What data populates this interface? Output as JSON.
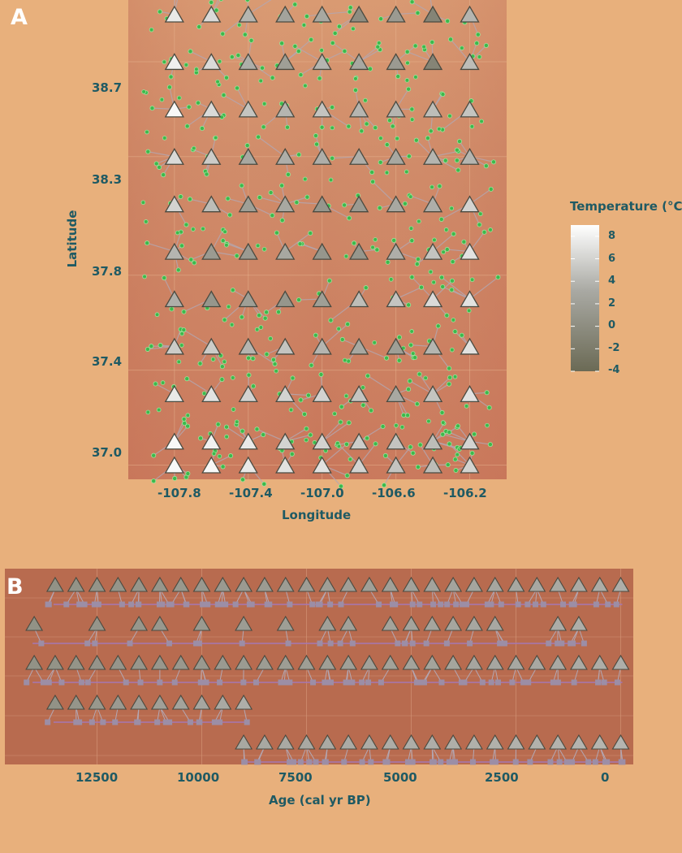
{
  "panels": {
    "a_letter": "A",
    "b_letter": "B"
  },
  "chart_data": [
    {
      "id": "A",
      "type": "scatter",
      "xlabel": "Longitude",
      "ylabel": "Latitude",
      "xlim": [
        -108.05,
        -106.0
      ],
      "ylim": [
        36.94,
        38.96
      ],
      "x_ticks": [
        -107.8,
        -107.4,
        -107.0,
        -106.6,
        -106.2
      ],
      "x_tick_labels": [
        "-107.8",
        "-107.4",
        "-107.0",
        "-106.6",
        "-106.2"
      ],
      "y_ticks": [
        37.0,
        37.4,
        37.8,
        38.3,
        38.7
      ],
      "y_tick_labels": [
        "37.0",
        "37.4",
        "37.8",
        "38.3",
        "38.7"
      ],
      "grid_lon": [
        -107.8,
        -107.6,
        -107.4,
        -107.2,
        -107.0,
        -106.8,
        -106.6,
        -106.4,
        -106.2
      ],
      "grid_lat": [
        38.9,
        38.7,
        38.5,
        38.3,
        38.1,
        37.9,
        37.7,
        37.5,
        37.3,
        37.1,
        37.0
      ],
      "grid_temperature": [
        [
          7.5,
          6.5,
          4,
          2.5,
          3,
          0,
          1.5,
          -1,
          4
        ],
        [
          8,
          6.5,
          3.5,
          2,
          4,
          3,
          1.5,
          -1,
          4.5
        ],
        [
          8.5,
          6.5,
          5,
          4,
          5,
          4,
          4,
          4.5,
          5
        ],
        [
          6.5,
          5.5,
          3,
          3.5,
          3.5,
          3.5,
          3,
          4,
          4
        ],
        [
          6,
          4.5,
          2,
          3,
          1,
          1.5,
          3,
          3.5,
          6
        ],
        [
          4,
          1.5,
          1.5,
          3,
          1,
          1,
          3.5,
          5,
          7
        ],
        [
          3.5,
          1,
          2,
          1,
          2,
          4.5,
          5,
          6.5,
          7
        ],
        [
          5.5,
          5.5,
          4,
          5,
          4,
          3,
          2,
          4,
          7
        ],
        [
          7.5,
          7,
          6,
          6,
          6,
          5,
          3,
          5,
          7
        ],
        [
          8.5,
          8,
          7.5,
          6,
          6,
          5.5,
          5,
          4.5,
          6
        ],
        [
          8.5,
          8.5,
          7.5,
          7,
          7,
          6,
          5,
          4.5,
          6
        ]
      ],
      "sites_note": "green points = fossil pollen sites",
      "legend": {
        "title": "Temperature (°C)",
        "labels": [
          "8",
          "6",
          "4",
          "2",
          "0",
          "-2",
          "-4"
        ],
        "values": [
          8,
          6,
          4,
          2,
          0,
          -2,
          -4
        ],
        "range": [
          -4,
          9
        ]
      }
    },
    {
      "id": "B",
      "type": "scatter",
      "xlabel": "Age (cal yr BP)",
      "ylabel": "",
      "x_reversed": true,
      "xlim": [
        14700,
        -300
      ],
      "x_ticks": [
        12500,
        10000,
        7500,
        5000,
        2500,
        0
      ],
      "x_tick_labels": [
        "12500",
        "10000",
        "7500",
        "5000",
        "2500",
        "0"
      ],
      "rows": [
        {
          "ages_from": 13500,
          "ages_to": 0,
          "step": 500,
          "temp_early": 0.5,
          "temp_late": 3.5
        },
        {
          "ages_from": 14000,
          "ages_to": 1000,
          "step": 500,
          "skip": [
            13500,
            13000,
            12000,
            10500,
            9500,
            8500,
            7500,
            6000,
            2500,
            2000
          ],
          "temp_early": 0.5,
          "temp_late": 3.5
        },
        {
          "ages_from": 14000,
          "ages_to": 0,
          "step": 500,
          "temp_early": 0.5,
          "temp_late": 3.5
        },
        {
          "ages_from": 13500,
          "ages_to": 9000,
          "step": 500,
          "temp_early": 0.5,
          "temp_late": 3.5
        },
        {
          "ages_from": 9000,
          "ages_to": 0,
          "step": 500,
          "temp_early": 3,
          "temp_late": 4
        }
      ]
    }
  ],
  "colors": {
    "background": "#E8B07C",
    "accent_text": "#1f5a63",
    "site_point": "#3db84c",
    "sample_square": "#9c8ea6",
    "sample_line": "#a577b3",
    "connector": "#b3a7b3",
    "gradient_low": "#6b6a55",
    "gradient_mid": "#a9a9a3",
    "gradient_high": "#ffffff"
  }
}
